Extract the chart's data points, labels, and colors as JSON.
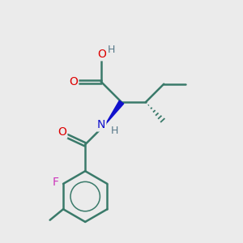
{
  "bg_color": "#ebebeb",
  "bond_color": "#3a7a6a",
  "bond_lw": 1.8,
  "atom_colors": {
    "O": "#dd0000",
    "N": "#1111cc",
    "F": "#cc33bb",
    "H": "#557788",
    "C": "#3a7a6a"
  },
  "figsize": [
    3.0,
    3.0
  ],
  "dpi": 100,
  "xlim": [
    0,
    10
  ],
  "ylim": [
    0,
    10
  ]
}
